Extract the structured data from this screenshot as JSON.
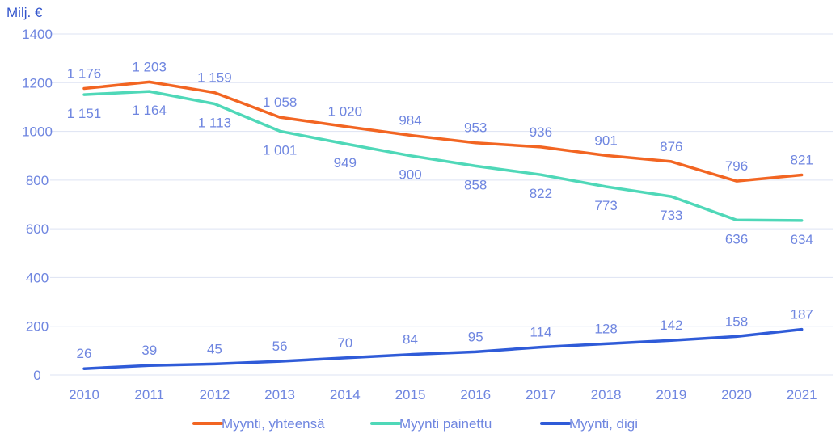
{
  "chart_data": {
    "type": "line",
    "title": "",
    "xlabel": "",
    "ylabel": "Milj. €",
    "ylim": [
      0,
      1400
    ],
    "yticks": [
      "0",
      "200",
      "400",
      "600",
      "800",
      "1000",
      "1200",
      "1400"
    ],
    "categories": [
      "2010",
      "2011",
      "2012",
      "2013",
      "2014",
      "2015",
      "2016",
      "2017",
      "2018",
      "2019",
      "2020",
      "2021"
    ],
    "grid": true,
    "legend_position": "bottom",
    "series": [
      {
        "name": "Myynti, yhteensä",
        "color": "#f26522",
        "values": [
          1176,
          1203,
          1159,
          1058,
          1020,
          984,
          953,
          936,
          901,
          876,
          796,
          821
        ],
        "labels": [
          "1 176",
          "1 203",
          "1 159",
          "1 058",
          "1 020",
          "984",
          "953",
          "936",
          "901",
          "876",
          "796",
          "821"
        ],
        "label_position": "above"
      },
      {
        "name": "Myynti painettu",
        "color": "#4fd8b8",
        "values": [
          1151,
          1164,
          1113,
          1001,
          949,
          900,
          858,
          822,
          773,
          733,
          636,
          634
        ],
        "labels": [
          "1 151",
          "1 164",
          "1 113",
          "1 001",
          "949",
          "900",
          "858",
          "822",
          "773",
          "733",
          "636",
          "634"
        ],
        "label_position": "below"
      },
      {
        "name": "Myynti, digi",
        "color": "#2f5bd8",
        "values": [
          26,
          39,
          45,
          56,
          70,
          84,
          95,
          114,
          128,
          142,
          158,
          187
        ],
        "labels": [
          "26",
          "39",
          "45",
          "56",
          "70",
          "84",
          "95",
          "114",
          "128",
          "142",
          "158",
          "187"
        ],
        "label_position": "above"
      }
    ]
  }
}
